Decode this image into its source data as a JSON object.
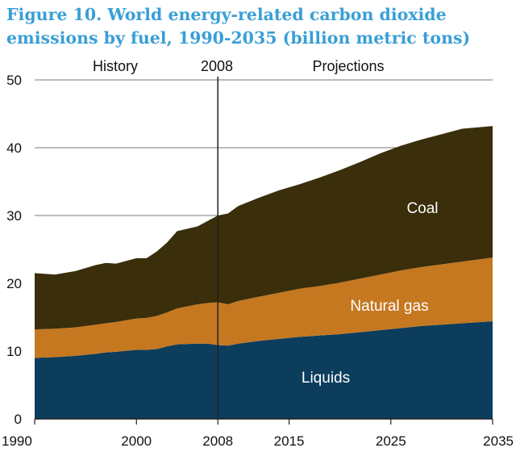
{
  "title_line1": "Figure 10. World energy-related carbon dioxide",
  "title_line2": "emissions by fuel, 1990-2035 (billion metric tons)",
  "chart_data": {
    "type": "area",
    "stacked": true,
    "x": [
      1990,
      1992,
      1994,
      1996,
      1997,
      1998,
      2000,
      2001,
      2002,
      2003,
      2004,
      2006,
      2007,
      2008,
      2009,
      2010,
      2012,
      2014,
      2016,
      2018,
      2020,
      2022,
      2024,
      2026,
      2028,
      2030,
      2032,
      2035
    ],
    "series": [
      {
        "name": "Liquids",
        "color": "#0d3d5c",
        "values": [
          9.0,
          9.1,
          9.3,
          9.6,
          9.8,
          9.9,
          10.2,
          10.2,
          10.3,
          10.7,
          11.0,
          11.1,
          11.1,
          10.9,
          10.8,
          11.1,
          11.5,
          11.8,
          12.1,
          12.3,
          12.5,
          12.8,
          13.1,
          13.4,
          13.7,
          13.9,
          14.1,
          14.4
        ]
      },
      {
        "name": "Natural gas",
        "color": "#c57820",
        "values": [
          4.2,
          4.2,
          4.2,
          4.3,
          4.3,
          4.4,
          4.6,
          4.7,
          4.9,
          5.0,
          5.3,
          5.8,
          6.0,
          6.3,
          6.1,
          6.3,
          6.5,
          6.8,
          7.1,
          7.3,
          7.6,
          7.9,
          8.2,
          8.5,
          8.7,
          8.9,
          9.1,
          9.4
        ]
      },
      {
        "name": "Coal",
        "color": "#3a2e0b",
        "values": [
          8.3,
          8.0,
          8.3,
          8.8,
          8.9,
          8.6,
          8.9,
          8.8,
          9.5,
          10.3,
          11.4,
          11.5,
          12.1,
          12.8,
          13.4,
          14.0,
          14.6,
          15.1,
          15.4,
          16.0,
          16.6,
          17.2,
          17.9,
          18.4,
          18.8,
          19.2,
          19.6,
          19.4
        ]
      }
    ],
    "xticks": [
      1990,
      2000,
      2008,
      2015,
      2025,
      2035
    ],
    "yticks": [
      0,
      10,
      20,
      30,
      40,
      50
    ],
    "xlim": [
      1990,
      2035
    ],
    "ylim": [
      0,
      50
    ],
    "grid": "horizontal",
    "divider_year": 2008,
    "annotations": {
      "history": "History",
      "divider": "2008",
      "projections": "Projections"
    },
    "area_labels": [
      "Coal",
      "Natural gas",
      "Liquids"
    ]
  }
}
